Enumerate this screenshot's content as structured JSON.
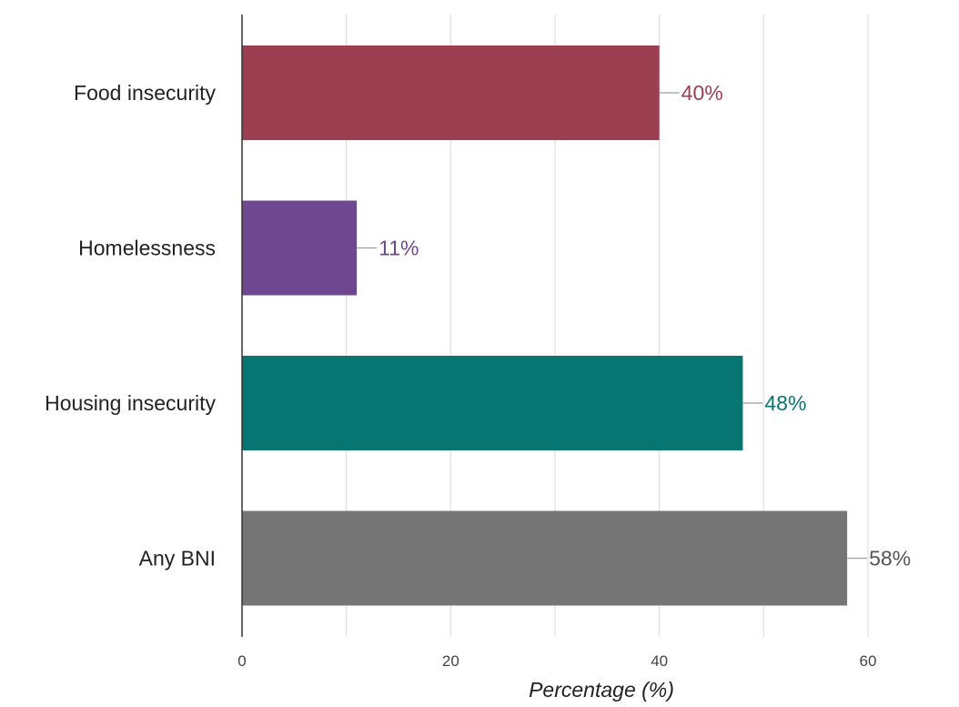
{
  "chart_data": {
    "type": "bar",
    "orientation": "horizontal",
    "categories": [
      "Food insecurity",
      "Homelessness",
      "Housing insecurity",
      "Any BNI"
    ],
    "values": [
      40,
      11,
      48,
      58
    ],
    "data_labels": [
      "40%",
      "11%",
      "48%",
      "58%"
    ],
    "colors": [
      "#9b3f51",
      "#6f4690",
      "#077572",
      "#757575"
    ],
    "title": "",
    "xlabel": "Percentage (%)",
    "ylabel": "",
    "xlim": [
      0,
      60
    ],
    "major_ticks": [
      0,
      20,
      40,
      60
    ],
    "minor_gridlines": [
      10,
      30,
      50
    ],
    "grid": true,
    "legend": "none"
  }
}
